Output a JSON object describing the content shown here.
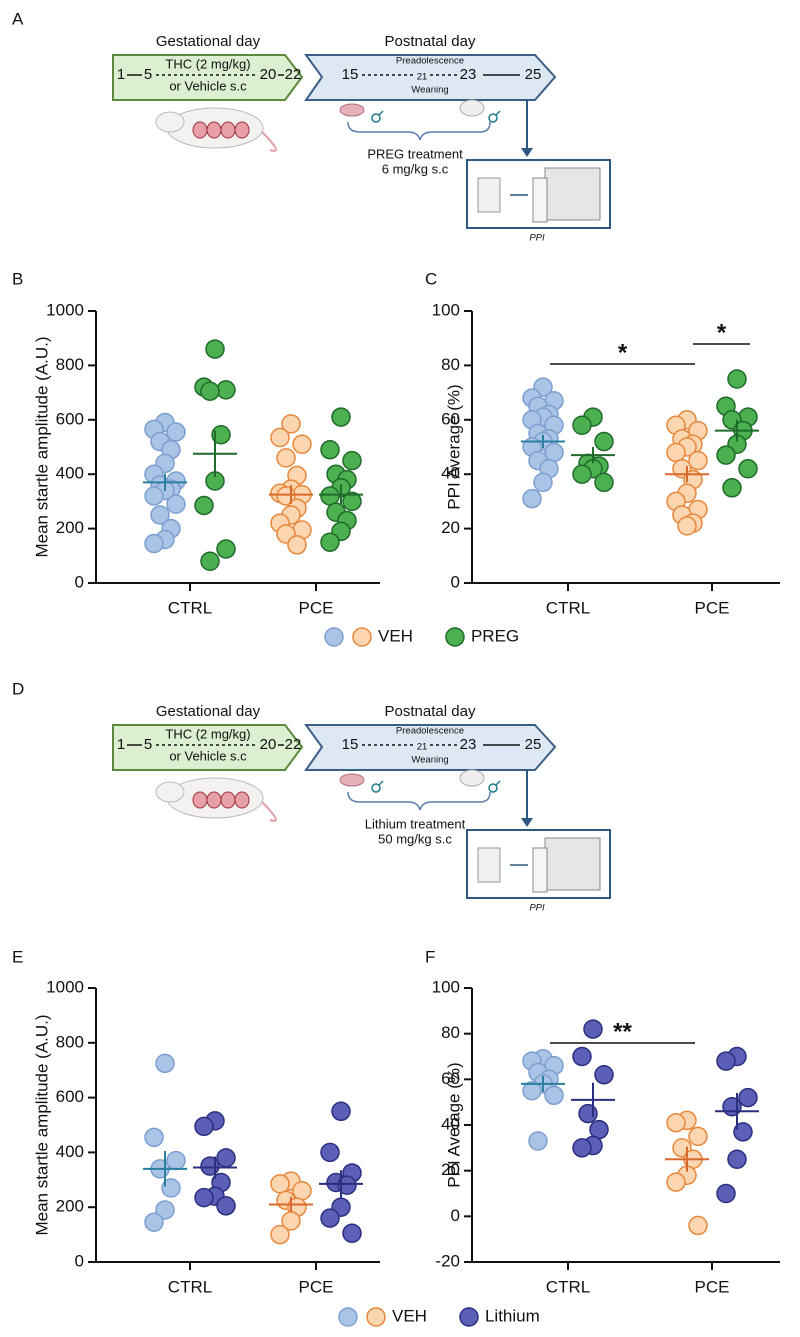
{
  "schematics": [
    {
      "panel": "A",
      "gestational_label": "Gestational day",
      "postnatal_label": "Postnatal day",
      "gestational_days": [
        "1",
        "5",
        "20",
        "22"
      ],
      "postnatal_days": [
        "15",
        "21",
        "23",
        "25"
      ],
      "drug": [
        "THC (2 mg/kg)",
        "or Vehicle s.c"
      ],
      "stage_top": "Preadolescence",
      "stage_bottom": "Weaning",
      "treatment": [
        "PREG treatment",
        "6 mg/kg s.c"
      ],
      "test": "PPI"
    },
    {
      "panel": "D",
      "gestational_label": "Gestational day",
      "postnatal_label": "Postnatal day",
      "gestational_days": [
        "1",
        "5",
        "20",
        "22"
      ],
      "postnatal_days": [
        "15",
        "21",
        "23",
        "25"
      ],
      "drug": [
        "THC (2 mg/kg)",
        "or Vehicle s.c"
      ],
      "stage_top": "Preadolescence",
      "stage_bottom": "Weaning",
      "treatment": [
        "Lithium treatment",
        "50 mg/kg s.c"
      ],
      "test": "PPI"
    }
  ],
  "chart_data": [
    {
      "type": "scatter",
      "panel": "B",
      "y_label": "Mean startle amplitude (A.U.)",
      "categories": [
        "CTRL",
        "PCE"
      ],
      "ylim": [
        0,
        1000
      ],
      "yticks": [
        0,
        200,
        400,
        600,
        800,
        1000
      ],
      "legend": "bottom",
      "series": [
        {
          "name": "VEH",
          "colors": [
            "#aac4e6",
            "#fcd6b0"
          ],
          "edge_colors": [
            "#7c9fd0",
            "#e8873b"
          ],
          "line_colors": [
            "#2a7fa0",
            "#d9692a"
          ],
          "values": [
            [
              590,
              565,
              555,
              520,
              490,
              440,
              400,
              375,
              360,
              345,
              340,
              320,
              290,
              250,
              200,
              160,
              145
            ],
            [
              585,
              535,
              510,
              460,
              395,
              345,
              330,
              325,
              320,
              275,
              250,
              220,
              195,
              180,
              140
            ]
          ],
          "means": [
            370,
            325
          ],
          "sem": [
            32,
            35
          ]
        },
        {
          "name": "PREG",
          "colors": [
            "#4caf50",
            "#4caf50"
          ],
          "edge_colors": [
            "#1e6b2a",
            "#1e6b2a"
          ],
          "line_colors": [
            "#1e6b2a",
            "#1e6b2a"
          ],
          "values": [
            [
              860,
              720,
              710,
              705,
              545,
              375,
              285,
              125,
              80
            ],
            [
              610,
              490,
              450,
              400,
              380,
              350,
              320,
              300,
              260,
              230,
              190,
              150
            ]
          ],
          "means": [
            475,
            325
          ],
          "sem": [
            85,
            38
          ]
        }
      ]
    },
    {
      "type": "scatter",
      "panel": "C",
      "y_label": "PPI Average (%)",
      "categories": [
        "CTRL",
        "PCE"
      ],
      "ylim": [
        0,
        100
      ],
      "yticks": [
        0,
        20,
        40,
        60,
        80,
        100
      ],
      "annotations": [
        {
          "text": "*"
        },
        {
          "text": "*"
        }
      ],
      "series": [
        {
          "colors": [
            "#aac4e6",
            "#fcd6b0"
          ],
          "edge_colors": [
            "#7c9fd0",
            "#e8873b"
          ],
          "line_colors": [
            "#2a7fa0",
            "#d9692a"
          ],
          "values": [
            [
              72,
              68,
              67,
              65,
              62,
              61,
              60,
              58,
              55,
              53,
              52,
              50,
              48,
              45,
              42,
              37,
              31
            ],
            [
              60,
              58,
              56,
              53,
              51,
              50,
              48,
              45,
              42,
              38,
              33,
              30,
              27,
              25,
              22,
              21
            ]
          ],
          "means": [
            52,
            40
          ],
          "sem": [
            2.5,
            3
          ]
        },
        {
          "colors": [
            "#4caf50",
            "#4caf50"
          ],
          "edge_colors": [
            "#1e6b2a",
            "#1e6b2a"
          ],
          "line_colors": [
            "#1e6b2a",
            "#1e6b2a"
          ],
          "values": [
            [
              61,
              58,
              52,
              44,
              43,
              42,
              40,
              37
            ],
            [
              75,
              65,
              61,
              60,
              56,
              51,
              47,
              42,
              35
            ]
          ],
          "means": [
            47,
            56
          ],
          "sem": [
            3,
            4
          ]
        }
      ]
    },
    {
      "type": "scatter",
      "panel": "E",
      "y_label": "Mean startle amplitude (A.U.)",
      "categories": [
        "CTRL",
        "PCE"
      ],
      "ylim": [
        0,
        1000
      ],
      "yticks": [
        0,
        200,
        400,
        600,
        800,
        1000
      ],
      "legend": "bottom",
      "series": [
        {
          "name": "VEH",
          "colors": [
            "#aac4e6",
            "#fcd6b0"
          ],
          "edge_colors": [
            "#7c9fd0",
            "#e8873b"
          ],
          "line_colors": [
            "#2a7fa0",
            "#d9692a"
          ],
          "values": [
            [
              725,
              455,
              370,
              340,
              270,
              190,
              145
            ],
            [
              295,
              285,
              260,
              225,
              200,
              150,
              100
            ]
          ],
          "means": [
            340,
            210
          ],
          "sem": [
            65,
            28
          ]
        },
        {
          "name": "Lithium",
          "colors": [
            "#5b5fb5",
            "#5b5fb5"
          ],
          "edge_colors": [
            "#2c2f80",
            "#2c2f80"
          ],
          "line_colors": [
            "#2c2f80",
            "#2c2f80"
          ],
          "values": [
            [
              515,
              495,
              380,
              350,
              290,
              240,
              235,
              205
            ],
            [
              550,
              400,
              325,
              290,
              280,
              200,
              160,
              105
            ]
          ],
          "means": [
            345,
            285
          ],
          "sem": [
            40,
            50
          ]
        }
      ]
    },
    {
      "type": "scatter",
      "panel": "F",
      "y_label": "PPI Average (%)",
      "categories": [
        "CTRL",
        "PCE"
      ],
      "ylim": [
        -20,
        100
      ],
      "yticks": [
        -20,
        0,
        20,
        40,
        60,
        80,
        100
      ],
      "annotations": [
        {
          "text": "**"
        }
      ],
      "series": [
        {
          "colors": [
            "#aac4e6",
            "#fcd6b0"
          ],
          "edge_colors": [
            "#7c9fd0",
            "#e8873b"
          ],
          "line_colors": [
            "#2a7fa0",
            "#d9692a"
          ],
          "values": [
            [
              69,
              68,
              66,
              63,
              60,
              58,
              55,
              53,
              33
            ],
            [
              42,
              41,
              35,
              30,
              25,
              18,
              15,
              -4
            ]
          ],
          "means": [
            58,
            25
          ],
          "sem": [
            3.5,
            5.5
          ]
        },
        {
          "colors": [
            "#5b5fb5",
            "#5b5fb5"
          ],
          "edge_colors": [
            "#2c2f80",
            "#2c2f80"
          ],
          "line_colors": [
            "#2c2f80",
            "#2c2f80"
          ],
          "values": [
            [
              82,
              70,
              62,
              45,
              38,
              31,
              30
            ],
            [
              70,
              68,
              52,
              48,
              37,
              25,
              10
            ]
          ],
          "means": [
            51,
            46
          ],
          "sem": [
            7.5,
            8
          ]
        }
      ]
    }
  ]
}
